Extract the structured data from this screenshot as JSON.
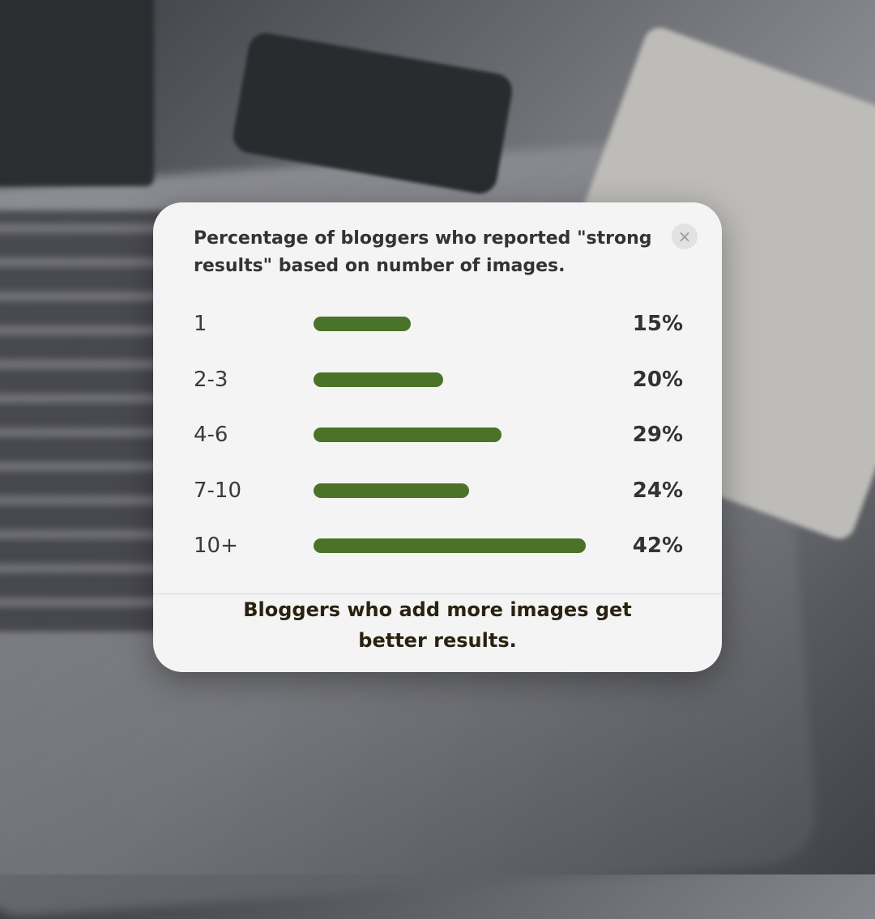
{
  "chart_data": {
    "type": "bar",
    "orientation": "horizontal",
    "title": "Percentage of bloggers who reported \"strong results\" based on number of images.",
    "categories": [
      "1",
      "2-3",
      "4-6",
      "7-10",
      "10+"
    ],
    "values": [
      15,
      20,
      29,
      24,
      42
    ],
    "value_labels": [
      "15%",
      "20%",
      "29%",
      "24%",
      "42%"
    ],
    "unit": "%",
    "bar_color": "#4a7229",
    "grid": false
  },
  "card": {
    "close_icon": "×",
    "footer": "Bloggers who add more images get better results."
  }
}
